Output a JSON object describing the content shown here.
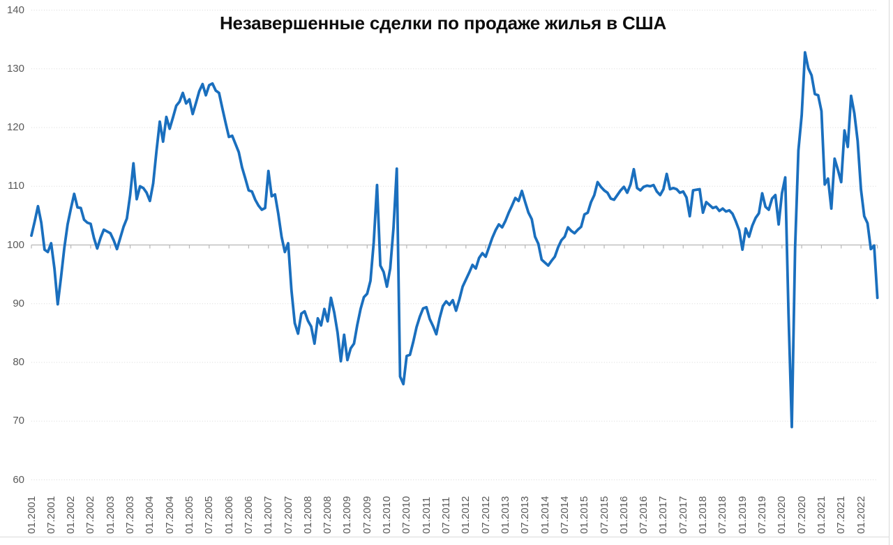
{
  "title": "Незавершенные сделки по продаже жилья в США",
  "colors": {
    "line": "#1a6fbe",
    "gridline_dotted": "#d7d7d7",
    "axis_line": "#b7b7b7",
    "label_text": "#595959",
    "title_text": "#0d0d0d",
    "frame": "#d9d9d9"
  },
  "chart_data": {
    "type": "line",
    "title": "Незавершенные сделки по продаже жилья в США",
    "frequency": "monthly",
    "months": {
      "first": "01.2001",
      "last": "06.2022"
    },
    "ylim": [
      60,
      140
    ],
    "y_ticks": [
      60,
      70,
      80,
      90,
      100,
      110,
      120,
      130,
      140
    ],
    "grid": "horizontal dotted, solid category axis at 100 with tick marks every 6 months",
    "legend": "none",
    "x_tick_labels": [
      "01.2001",
      "07.2001",
      "01.2002",
      "07.2002",
      "01.2003",
      "07.2003",
      "01.2004",
      "07.2004",
      "01.2005",
      "07.2005",
      "01.2006",
      "07.2006",
      "01.2007",
      "07.2007",
      "01.2008",
      "07.2008",
      "01.2009",
      "07.2009",
      "01.2010",
      "07.2010",
      "01.2011",
      "07.2011",
      "01.2012",
      "07.2012",
      "01.2013",
      "07.2013",
      "01.2014",
      "07.2014",
      "01.2015",
      "07.2015",
      "01.2016",
      "07.2016",
      "01.2017",
      "07.2017",
      "01.2018",
      "07.2018",
      "01.2019",
      "07.2019",
      "01.2020",
      "07.2020",
      "01.2021",
      "07.2021",
      "01.2022"
    ],
    "values": [
      101.6,
      104.0,
      106.6,
      103.8,
      99.2,
      98.8,
      100.3,
      96.0,
      89.9,
      94.5,
      99.5,
      103.5,
      106.2,
      108.7,
      106.4,
      106.3,
      104.3,
      103.8,
      103.6,
      101.2,
      99.4,
      101.2,
      102.6,
      102.3,
      102.0,
      100.8,
      99.3,
      101.2,
      103.1,
      104.5,
      108.5,
      113.9,
      107.8,
      110.0,
      109.7,
      108.9,
      107.5,
      110.5,
      116.0,
      121.0,
      117.6,
      121.8,
      119.8,
      121.7,
      123.7,
      124.4,
      125.9,
      124.1,
      124.8,
      122.3,
      124.2,
      126.2,
      127.4,
      125.5,
      127.2,
      127.5,
      126.3,
      125.9,
      123.3,
      120.8,
      118.4,
      118.6,
      117.2,
      115.8,
      113.2,
      111.3,
      109.3,
      109.1,
      107.7,
      106.7,
      106.0,
      106.3,
      112.6,
      108.3,
      108.6,
      105.3,
      101.4,
      98.8,
      100.3,
      92.3,
      86.7,
      84.9,
      88.3,
      88.7,
      87.1,
      86.1,
      83.2,
      87.5,
      86.3,
      89.1,
      87.0,
      91.0,
      88.5,
      85.1,
      80.2,
      84.7,
      80.4,
      82.4,
      83.2,
      86.4,
      89.1,
      91.1,
      91.7,
      93.9,
      100.5,
      110.2,
      96.5,
      95.4,
      92.9,
      96.0,
      102.9,
      113.0,
      77.6,
      76.3,
      81.1,
      81.3,
      83.5,
      86.0,
      87.8,
      89.2,
      89.4,
      87.4,
      86.2,
      84.8,
      87.5,
      89.6,
      90.4,
      89.8,
      90.6,
      88.8,
      90.7,
      92.9,
      94.1,
      95.3,
      96.6,
      96.0,
      97.8,
      98.6,
      98.0,
      99.6,
      101.2,
      102.5,
      103.5,
      103.0,
      104.1,
      105.5,
      106.7,
      108.0,
      107.5,
      109.2,
      107.3,
      105.5,
      104.4,
      101.4,
      100.2,
      97.5,
      97.0,
      96.5,
      97.3,
      98.0,
      99.6,
      100.8,
      101.4,
      103.0,
      102.4,
      102.0,
      102.6,
      103.1,
      105.2,
      105.5,
      107.3,
      108.5,
      110.7,
      109.9,
      109.3,
      108.9,
      107.9,
      107.7,
      108.5,
      109.3,
      109.9,
      108.9,
      110.3,
      112.9,
      109.7,
      109.3,
      109.9,
      110.1,
      110.0,
      110.2,
      109.1,
      108.5,
      109.5,
      112.1,
      109.5,
      109.7,
      109.5,
      108.9,
      109.1,
      108.1,
      104.9,
      109.3,
      109.4,
      109.5,
      105.5,
      107.3,
      106.8,
      106.3,
      106.5,
      105.8,
      106.2,
      105.7,
      105.9,
      105.3,
      104.0,
      102.5,
      99.2,
      102.8,
      101.4,
      103.3,
      104.6,
      105.4,
      108.8,
      106.5,
      106.0,
      107.9,
      108.5,
      103.5,
      108.8,
      111.5,
      88.2,
      69.0,
      99.6,
      116.1,
      122.1,
      132.8,
      130.1,
      128.9,
      125.7,
      125.5,
      122.8,
      110.3,
      111.3,
      106.2,
      114.7,
      112.8,
      110.7,
      119.5,
      116.7,
      125.4,
      122.4,
      117.7,
      109.5,
      104.9,
      103.7,
      99.3,
      99.9,
      91.0
    ]
  }
}
